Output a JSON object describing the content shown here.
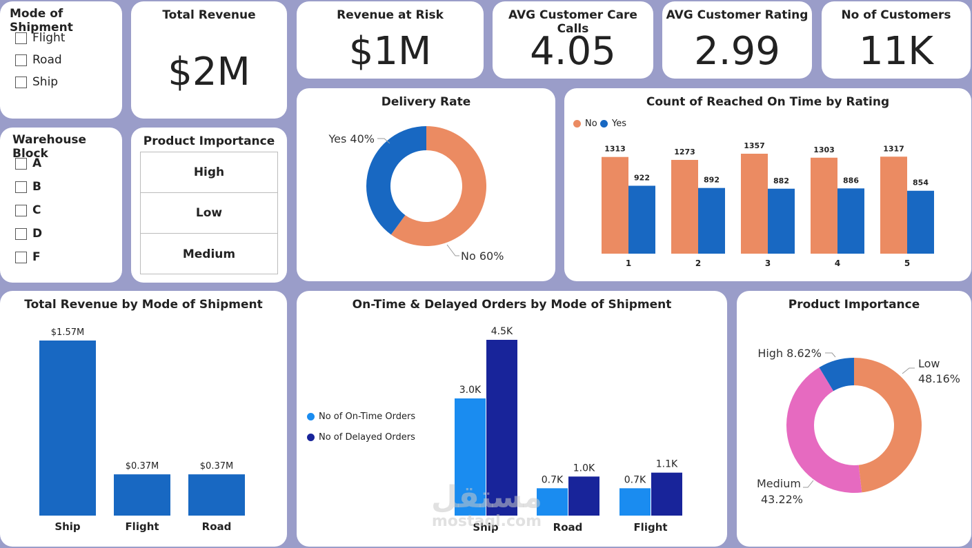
{
  "mode_slicer": {
    "title": "Mode of Shipment",
    "items": [
      "Flight",
      "Road",
      "Ship"
    ]
  },
  "total_revenue": {
    "title": "Total Revenue",
    "value": "$2M"
  },
  "revenue_at_risk": {
    "title": "Revenue at Risk",
    "value": "$1M"
  },
  "avg_calls": {
    "title": "AVG Customer Care Calls",
    "value": "4.05"
  },
  "avg_rating": {
    "title": "AVG Customer Rating",
    "value": "2.99"
  },
  "customers": {
    "title": "No of Customers",
    "value": "11K"
  },
  "warehouse_slicer": {
    "title": "Warehouse Block",
    "items": [
      "A",
      "B",
      "C",
      "D",
      "F"
    ]
  },
  "importance_slicer": {
    "title": "Product Importance",
    "items": [
      "High",
      "Low",
      "Medium"
    ]
  },
  "colors": {
    "orange": "#eb8b62",
    "blue": "#1868c2",
    "light_blue": "#1a8cf0",
    "navy": "#18249a",
    "pink": "#e66ac0",
    "background": "#9a9dc9"
  },
  "watermark": {
    "arabic": "مستقل",
    "latin": "mostaql.com"
  },
  "chart_data": [
    {
      "type": "pie",
      "title": "Delivery Rate",
      "slices": [
        {
          "name": "No",
          "value": 60,
          "label": "No 60%",
          "color": "#eb8b62"
        },
        {
          "name": "Yes",
          "value": 40,
          "label": "Yes 40%",
          "color": "#1868c2"
        }
      ]
    },
    {
      "type": "bar",
      "title": "Count of Reached On Time by Rating",
      "categories": [
        "1",
        "2",
        "3",
        "4",
        "5"
      ],
      "series": [
        {
          "name": "No",
          "values": [
            1313,
            1273,
            1357,
            1303,
            1317
          ],
          "color": "#eb8b62"
        },
        {
          "name": "Yes",
          "values": [
            922,
            892,
            882,
            886,
            854
          ],
          "color": "#1868c2"
        }
      ],
      "legend": "top-left"
    },
    {
      "type": "bar",
      "title": "Total Revenue by Mode of Shipment",
      "categories": [
        "Ship",
        "Flight",
        "Road"
      ],
      "values": [
        1.57,
        0.37,
        0.37
      ],
      "labels": [
        "$1.57M",
        "$0.37M",
        "$0.37M"
      ],
      "color": "#1868c2"
    },
    {
      "type": "bar",
      "title": "On-Time & Delayed Orders by Mode of Shipment",
      "categories": [
        "Ship",
        "Road",
        "Flight"
      ],
      "series": [
        {
          "name": "No of On-Time Orders",
          "values": [
            3.0,
            0.7,
            0.7
          ],
          "labels": [
            "3.0K",
            "0.7K",
            "0.7K"
          ],
          "color": "#1a8cf0"
        },
        {
          "name": "No of Delayed Orders",
          "values": [
            4.5,
            1.0,
            1.1
          ],
          "labels": [
            "4.5K",
            "1.0K",
            "1.1K"
          ],
          "color": "#18249a"
        }
      ],
      "legend": "left"
    },
    {
      "type": "pie",
      "title": "Product Importance",
      "slices": [
        {
          "name": "Low",
          "value": 48.16,
          "label": [
            "Low",
            "48.16%"
          ],
          "color": "#eb8b62"
        },
        {
          "name": "Medium",
          "value": 43.22,
          "label": [
            "Medium",
            "43.22%"
          ],
          "color": "#e66ac0"
        },
        {
          "name": "High",
          "value": 8.62,
          "label": [
            "High 8.62%"
          ],
          "color": "#1868c2"
        }
      ]
    }
  ]
}
